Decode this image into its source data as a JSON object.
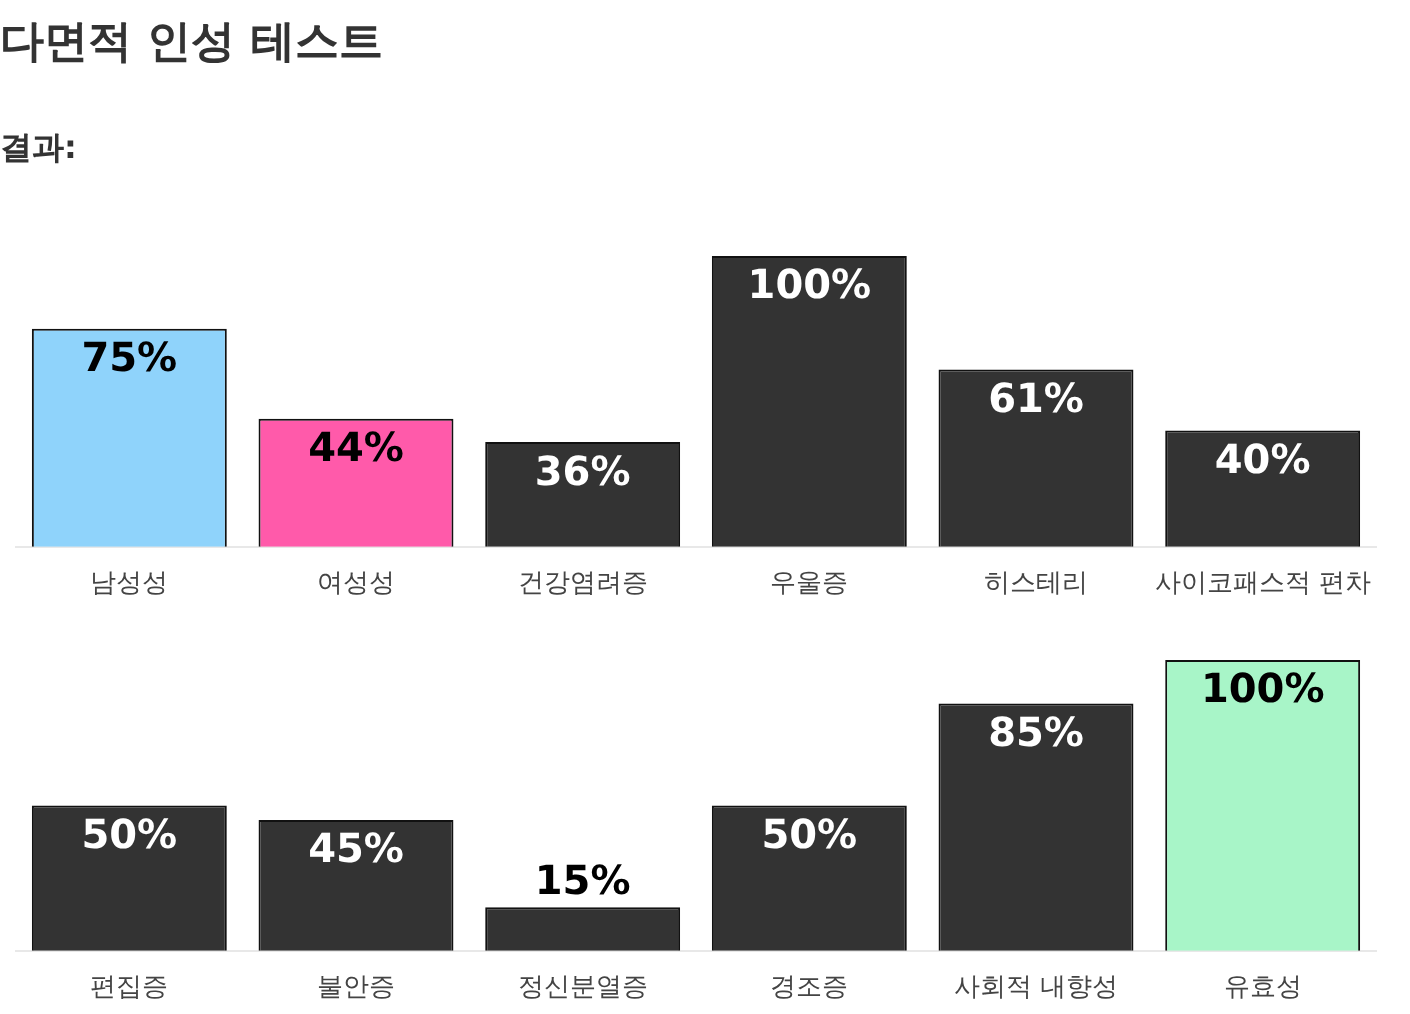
{
  "chart_data": [
    {
      "type": "bar",
      "title": "다면적 인성 테스트",
      "subtitle": "결과:",
      "categories": [
        "남성성",
        "여성성",
        "건강염려증",
        "우울증",
        "히스테리",
        "사이코패스적 편차"
      ],
      "values": [
        75,
        44,
        36,
        100,
        61,
        40
      ],
      "value_labels": [
        "75%",
        "44%",
        "36%",
        "100%",
        "61%",
        "40%"
      ],
      "colors": [
        "#8fd3fb",
        "#ff5aaa",
        "#333333",
        "#333333",
        "#333333",
        "#333333"
      ],
      "tick_labels": "x",
      "legend": false
    },
    {
      "type": "bar",
      "categories": [
        "편집증",
        "불안증",
        "정신분열증",
        "경조증",
        "사회적 내향성",
        "유효성"
      ],
      "values": [
        50,
        45,
        15,
        50,
        85,
        100
      ],
      "value_labels": [
        "50%",
        "45%",
        "15%",
        "50%",
        "85%",
        "100%"
      ],
      "colors": [
        "#333333",
        "#333333",
        "#333333",
        "#333333",
        "#333333",
        "#a8f5c8"
      ],
      "tick_labels": "x",
      "legend": false
    }
  ]
}
